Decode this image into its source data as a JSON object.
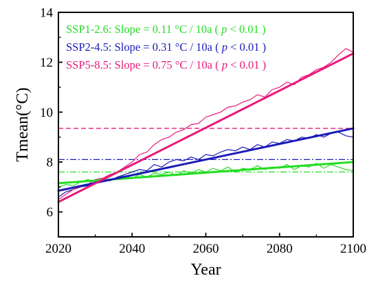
{
  "chart_data": {
    "type": "line",
    "xlabel": "Year",
    "ylabel": "Tmean(°C)",
    "xlim": [
      2020,
      2100
    ],
    "ylim": [
      5,
      14
    ],
    "x_ticks": [
      2020,
      2040,
      2060,
      2080,
      2100
    ],
    "y_ticks": [
      6,
      8,
      10,
      12,
      14
    ],
    "x_tick_labels": [
      "2020",
      "2040",
      "2060",
      "2080",
      "2100"
    ],
    "y_tick_labels": [
      "6",
      "8",
      "10",
      "12",
      "14"
    ],
    "grid": false,
    "legend_placement": "top-left",
    "annotations": [
      {
        "series": "SSP1-2.6",
        "color": "#22dd22",
        "text": "SSP1-2.6: Slope = 0.11 °C / 10a ( ",
        "p_symbol": "p",
        "p_text": " < 0.01 )"
      },
      {
        "series": "SSP2-4.5",
        "color": "#1a1ab8",
        "text": "SSP2-4.5: Slope = 0.31 °C / 10a ( ",
        "p_symbol": "p",
        "p_text": " < 0.01 )"
      },
      {
        "series": "SSP5-8.5",
        "color": "#e8197a",
        "text": "SSP5-8.5: Slope = 0.75 °C / 10a ( ",
        "p_symbol": "p",
        "p_text": " < 0.01 )"
      }
    ],
    "series": [
      {
        "name": "SSP1-2.6",
        "color": "#22dd22",
        "trend": {
          "x": [
            2020,
            2100
          ],
          "y": [
            7.15,
            8.0
          ]
        },
        "mean_level": 7.6,
        "mean_style": "dash-dot",
        "x": [
          2020,
          2022,
          2024,
          2026,
          2028,
          2030,
          2032,
          2034,
          2036,
          2038,
          2040,
          2042,
          2044,
          2046,
          2048,
          2050,
          2052,
          2054,
          2056,
          2058,
          2060,
          2062,
          2064,
          2066,
          2068,
          2070,
          2072,
          2074,
          2076,
          2078,
          2080,
          2082,
          2084,
          2086,
          2088,
          2090,
          2092,
          2094,
          2096,
          2098,
          2100
        ],
        "values": [
          7.0,
          7.1,
          7.05,
          7.2,
          7.3,
          7.2,
          7.35,
          7.25,
          7.4,
          7.45,
          7.35,
          7.5,
          7.4,
          7.55,
          7.5,
          7.6,
          7.45,
          7.65,
          7.55,
          7.7,
          7.6,
          7.75,
          7.65,
          7.8,
          7.6,
          7.75,
          7.7,
          7.85,
          7.7,
          7.8,
          7.75,
          7.9,
          7.7,
          7.85,
          7.8,
          7.95,
          7.75,
          7.9,
          7.8,
          7.7,
          7.65
        ]
      },
      {
        "name": "SSP2-4.5",
        "color": "#1a1ab8",
        "trend": {
          "x": [
            2020,
            2100
          ],
          "y": [
            6.85,
            9.35
          ]
        },
        "mean_level": 8.1,
        "mean_style": "dash-dot",
        "x": [
          2020,
          2022,
          2024,
          2026,
          2028,
          2030,
          2032,
          2034,
          2036,
          2038,
          2040,
          2042,
          2044,
          2046,
          2048,
          2050,
          2052,
          2054,
          2056,
          2058,
          2060,
          2062,
          2064,
          2066,
          2068,
          2070,
          2072,
          2074,
          2076,
          2078,
          2080,
          2082,
          2084,
          2086,
          2088,
          2090,
          2092,
          2094,
          2096,
          2098,
          2100
        ],
        "values": [
          6.6,
          6.8,
          6.9,
          7.0,
          7.05,
          7.2,
          7.3,
          7.25,
          7.4,
          7.5,
          7.6,
          7.7,
          7.65,
          7.9,
          7.8,
          8.0,
          8.1,
          8.05,
          8.2,
          8.1,
          8.3,
          8.25,
          8.4,
          8.5,
          8.45,
          8.6,
          8.5,
          8.7,
          8.6,
          8.8,
          8.75,
          8.9,
          8.85,
          9.0,
          8.95,
          9.1,
          9.0,
          9.15,
          9.2,
          9.05,
          9.0
        ]
      },
      {
        "name": "SSP5-8.5",
        "color": "#e8197a",
        "trend": {
          "x": [
            2020,
            2100
          ],
          "y": [
            6.4,
            12.35
          ]
        },
        "mean_level": 9.35,
        "mean_style": "dash",
        "x": [
          2020,
          2022,
          2024,
          2026,
          2028,
          2030,
          2032,
          2034,
          2036,
          2038,
          2040,
          2042,
          2044,
          2046,
          2048,
          2050,
          2052,
          2054,
          2056,
          2058,
          2060,
          2062,
          2064,
          2066,
          2068,
          2070,
          2072,
          2074,
          2076,
          2078,
          2080,
          2082,
          2084,
          2086,
          2088,
          2090,
          2092,
          2094,
          2096,
          2098,
          2100
        ],
        "values": [
          6.5,
          6.7,
          6.9,
          7.0,
          7.1,
          7.3,
          7.35,
          7.5,
          7.6,
          7.8,
          8.0,
          8.3,
          8.4,
          8.7,
          8.9,
          9.0,
          9.2,
          9.3,
          9.5,
          9.55,
          9.8,
          9.9,
          10.0,
          10.2,
          10.25,
          10.4,
          10.5,
          10.7,
          10.6,
          10.9,
          11.0,
          11.2,
          11.1,
          11.4,
          11.5,
          11.7,
          11.8,
          12.0,
          12.3,
          12.55,
          12.4
        ]
      }
    ]
  }
}
